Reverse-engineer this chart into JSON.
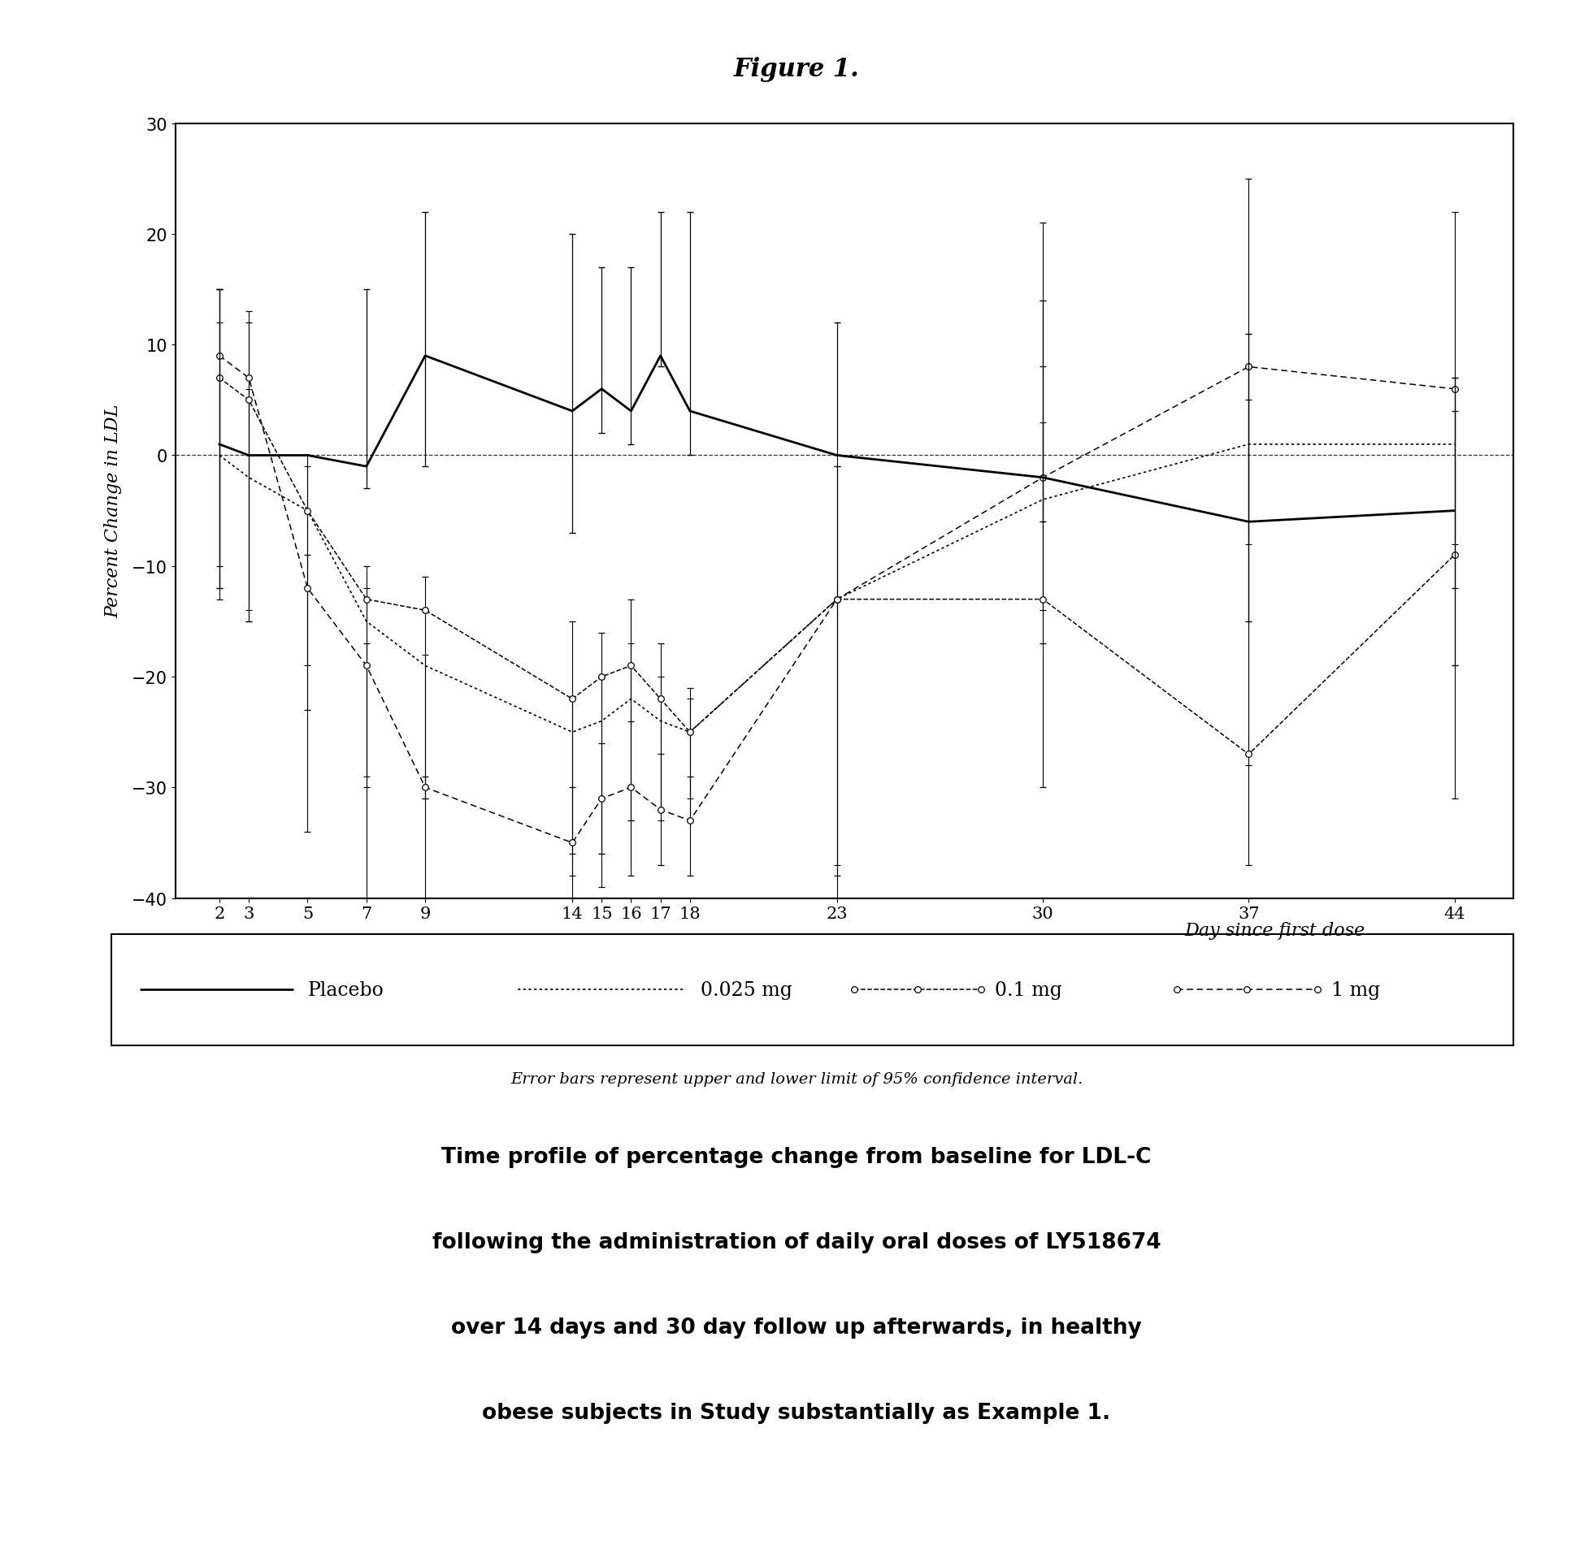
{
  "title": "Figure 1.",
  "xlabel": "Day since first dose",
  "ylabel": "Percent Change in LDL",
  "ylim": [
    -40,
    30
  ],
  "yticks": [
    -40,
    -30,
    -20,
    -10,
    0,
    10,
    20,
    30
  ],
  "days": [
    2,
    3,
    5,
    7,
    9,
    14,
    15,
    16,
    17,
    18,
    23,
    30,
    37,
    44
  ],
  "xtick_labels": [
    "2",
    "3",
    "5",
    "7",
    "9",
    "14",
    "15",
    "16",
    "17",
    "18",
    "23",
    "30",
    "37",
    "44"
  ],
  "placebo": {
    "y": [
      1,
      0,
      0,
      -1,
      9,
      4,
      6,
      4,
      9,
      4,
      0,
      -2,
      -6,
      -5
    ],
    "yerr_upper": [
      14,
      0,
      0,
      16,
      13,
      16,
      11,
      13,
      13,
      18,
      12,
      16,
      17,
      12
    ],
    "yerr_lower": [
      13,
      0,
      0,
      2,
      10,
      11,
      4,
      3,
      1,
      4,
      0,
      4,
      9,
      14
    ]
  },
  "dose_0025": {
    "y": [
      0,
      -2,
      -5,
      -15,
      -19,
      -25,
      -24,
      -22,
      -24,
      -25,
      -13,
      -4,
      1,
      1
    ],
    "yerr_upper": [
      12,
      8,
      4,
      3,
      1,
      3,
      4,
      5,
      4,
      3,
      12,
      7,
      7,
      6
    ],
    "yerr_lower": [
      12,
      12,
      14,
      14,
      12,
      13,
      12,
      11,
      9,
      6,
      24,
      10,
      9,
      9
    ]
  },
  "dose_01": {
    "y": [
      7,
      5,
      -5,
      -13,
      -14,
      -22,
      -20,
      -19,
      -22,
      -25,
      -13,
      -13,
      -27,
      -9
    ],
    "yerr_upper": [
      8,
      7,
      5,
      3,
      3,
      7,
      4,
      6,
      5,
      4,
      12,
      21,
      32,
      13
    ],
    "yerr_lower": [
      20,
      20,
      18,
      17,
      17,
      14,
      16,
      14,
      10,
      8,
      25,
      17,
      10,
      22
    ]
  },
  "dose_1": {
    "y": [
      9,
      7,
      -12,
      -19,
      -30,
      -35,
      -31,
      -30,
      -32,
      -33,
      -13,
      -2,
      8,
      6
    ],
    "yerr_upper": [
      6,
      6,
      3,
      2,
      1,
      5,
      5,
      6,
      5,
      4,
      13,
      23,
      17,
      16
    ],
    "yerr_lower": [
      19,
      22,
      22,
      22,
      31,
      7,
      8,
      8,
      5,
      5,
      27,
      15,
      36,
      18
    ]
  },
  "caption": "Error bars represent upper and lower limit of 95% confidence interval.",
  "description_lines": [
    "Time profile of percentage change from baseline for LDL-C",
    "following the administration of daily oral doses of LY518674",
    "over 14 days and 30 day follow up afterwards, in healthy",
    "obese subjects in Study substantially as Example 1."
  ],
  "background_color": "#ffffff"
}
